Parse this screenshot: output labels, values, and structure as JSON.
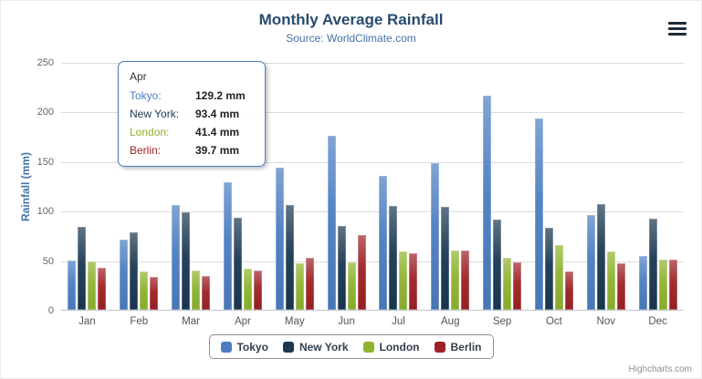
{
  "chart": {
    "title": "Monthly Average Rainfall",
    "subtitle": "Source: WorldClimate.com",
    "y_axis_title": "Rainfall (mm)",
    "credit_label": "Highcharts.com"
  },
  "colors": {
    "title": "#274b6d",
    "subtitle": "#4572a7",
    "tooltip_border": "#4b7dc0",
    "gridline": "#dcdcdc",
    "axis_line": "#c0c8d0"
  },
  "chart_data": {
    "type": "bar",
    "title": "Monthly Average Rainfall",
    "subtitle": "Source: WorldClimate.com",
    "xlabel": "",
    "ylabel": "Rainfall (mm)",
    "ylim": [
      0,
      250
    ],
    "y_ticks": [
      0,
      50,
      100,
      150,
      200,
      250
    ],
    "grid": true,
    "legend_position": "bottom",
    "categories": [
      "Jan",
      "Feb",
      "Mar",
      "Apr",
      "May",
      "Jun",
      "Jul",
      "Aug",
      "Sep",
      "Oct",
      "Nov",
      "Dec"
    ],
    "series": [
      {
        "name": "Tokyo",
        "color": "#4b7dc0",
        "values": [
          49.9,
          71.5,
          106.4,
          129.2,
          144.0,
          176.0,
          135.6,
          148.5,
          216.4,
          194.1,
          95.6,
          54.4
        ]
      },
      {
        "name": "New York",
        "color": "#1a3851",
        "values": [
          83.6,
          78.8,
          98.5,
          93.4,
          106.0,
          84.5,
          105.0,
          104.3,
          91.2,
          83.5,
          106.6,
          92.3
        ]
      },
      {
        "name": "London",
        "color": "#8fb32e",
        "values": [
          48.9,
          38.8,
          39.3,
          41.4,
          47.0,
          48.3,
          59.0,
          59.6,
          52.4,
          65.2,
          59.3,
          51.2
        ]
      },
      {
        "name": "Berlin",
        "color": "#9d2125",
        "values": [
          42.4,
          33.2,
          34.5,
          39.7,
          52.6,
          75.5,
          57.4,
          60.4,
          47.6,
          39.1,
          46.8,
          51.1
        ]
      }
    ]
  },
  "tooltip": {
    "header": "Apr",
    "rows": [
      {
        "label": "Tokyo:",
        "value": "129.2 mm"
      },
      {
        "label": "New York:",
        "value": "93.4 mm"
      },
      {
        "label": "London:",
        "value": "41.4 mm"
      },
      {
        "label": "Berlin:",
        "value": "39.7 mm"
      }
    ]
  }
}
